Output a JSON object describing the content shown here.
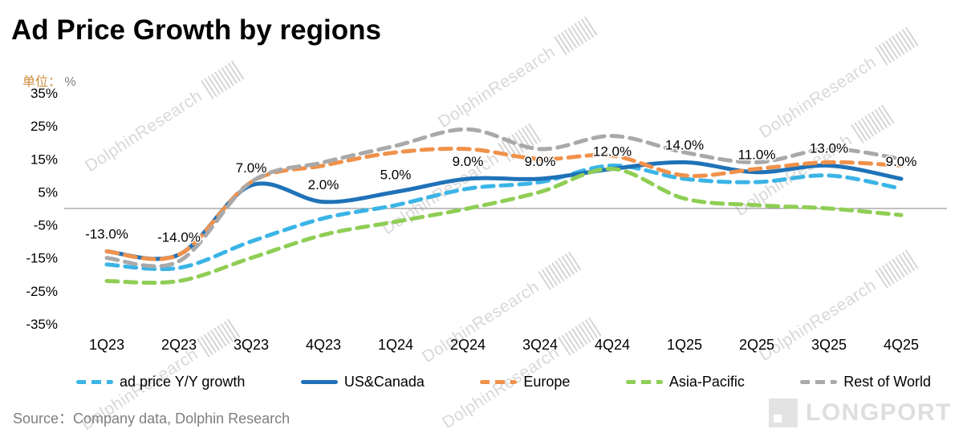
{
  "title": "Ad Price Growth by regions",
  "unit": {
    "label": "单位：",
    "value": "%"
  },
  "source": "Source：Company data, Dolphin Research",
  "watermark": {
    "text": "DolphinResearch",
    "brand": "LONGPORT"
  },
  "chart_data": {
    "type": "line",
    "title": "Ad Price Growth by regions",
    "categories": [
      "1Q23",
      "2Q23",
      "3Q23",
      "4Q23",
      "1Q24",
      "2Q24",
      "3Q24",
      "4Q24",
      "1Q25",
      "2Q25",
      "3Q25",
      "4Q25"
    ],
    "ylim": [
      -35,
      35
    ],
    "yticks": [
      "35%",
      "25%",
      "15%",
      "5%",
      "-5%",
      "-15%",
      "-25%",
      "-35%"
    ],
    "grid": false,
    "legend_position": "bottom",
    "series": [
      {
        "name": "ad price Y/Y growth",
        "color": "#3BB4E6",
        "dashed": true,
        "values": [
          -17,
          -18,
          -10,
          -3,
          1,
          6,
          8,
          13,
          9,
          8,
          10,
          6
        ]
      },
      {
        "name": "US&Canada",
        "color": "#1F72B8",
        "dashed": false,
        "values": [
          -13,
          -14,
          7,
          2,
          5,
          9,
          9,
          12,
          14,
          11,
          13,
          9
        ],
        "labels": [
          "-13.0%",
          "-14.0%",
          "7.0%",
          "2.0%",
          "5.0%",
          "9.0%",
          "9.0%",
          "12.0%",
          "14.0%",
          "11.0%",
          "13.0%",
          "9.0%"
        ]
      },
      {
        "name": "Europe",
        "color": "#F0914B",
        "dashed": true,
        "values": [
          -13,
          -14,
          8,
          13,
          17,
          18,
          15,
          16,
          10,
          12,
          14,
          13
        ]
      },
      {
        "name": "Asia-Pacific",
        "color": "#8FCE55",
        "dashed": true,
        "values": [
          -22,
          -22,
          -15,
          -8,
          -4,
          0,
          5,
          12,
          3,
          1,
          0,
          -2
        ]
      },
      {
        "name": "Rest of World",
        "color": "#A9A9A9",
        "dashed": true,
        "values": [
          -15,
          -16,
          8,
          14,
          19,
          24,
          18,
          22,
          17,
          14,
          18,
          15
        ]
      }
    ]
  }
}
